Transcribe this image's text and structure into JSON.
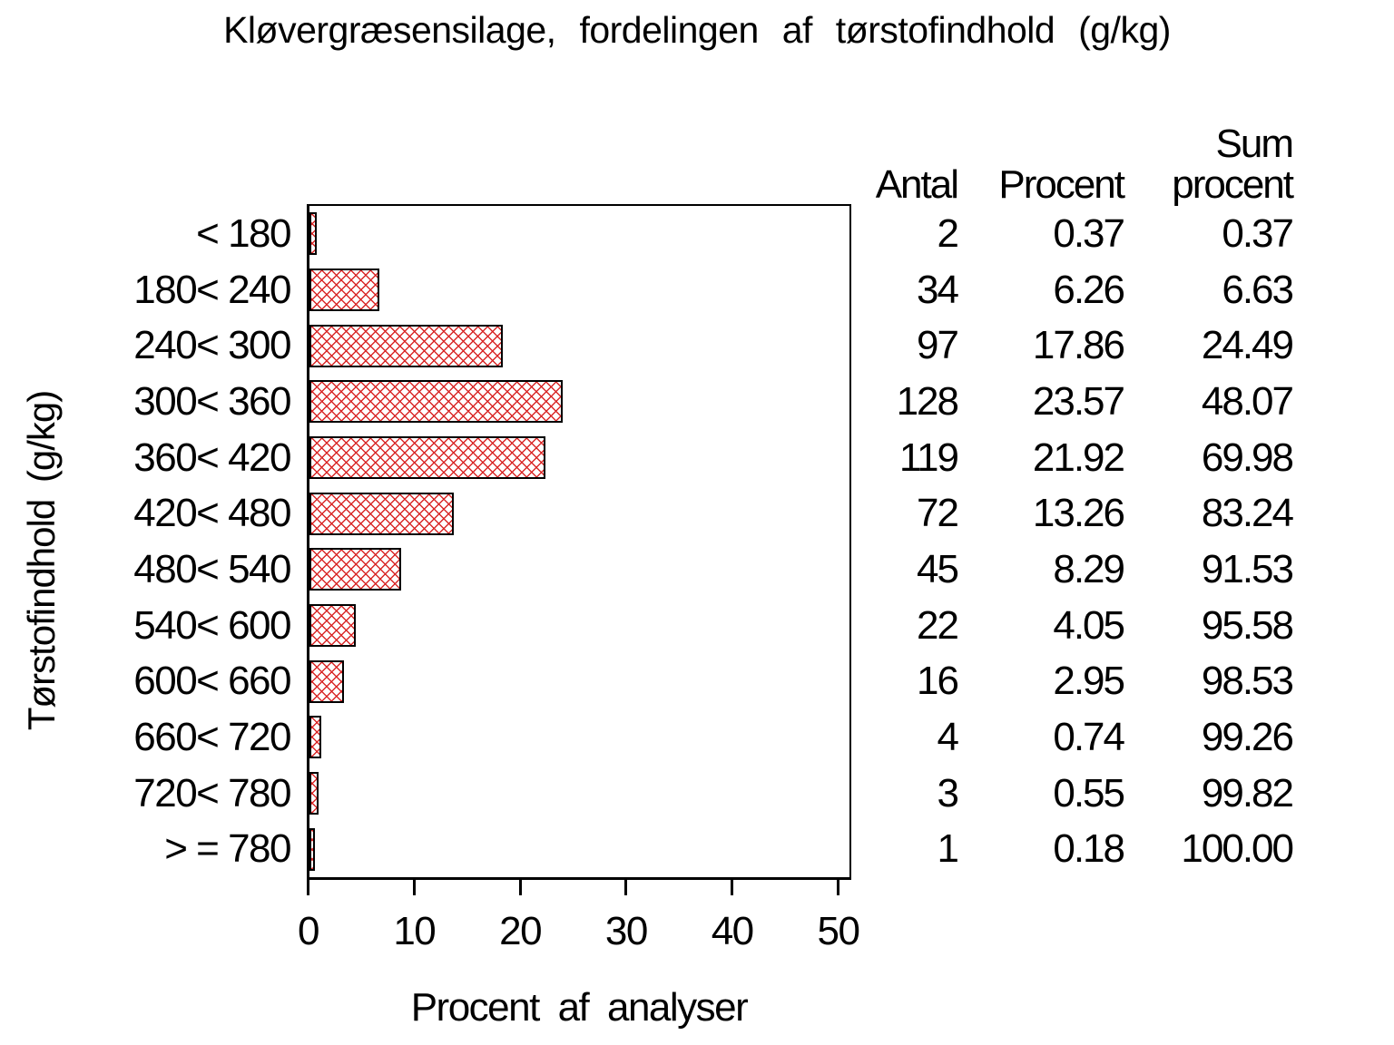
{
  "chart_data": {
    "type": "bar",
    "orientation": "horizontal",
    "title": "Kløvergræsensilage, fordelingen af tørstofindhold (g/kg)",
    "xlabel": "Procent af analyser",
    "ylabel": "Tørstofindhold (g/kg)",
    "xlim": [
      0,
      50
    ],
    "xticks": [
      "0",
      "10",
      "20",
      "30",
      "40",
      "50"
    ],
    "grid": false,
    "legend": "none",
    "categories": [
      "< 180",
      "180< 240",
      "240< 300",
      "300< 360",
      "360< 420",
      "420< 480",
      "480< 540",
      "540< 600",
      "600< 660",
      "660< 720",
      "720< 780",
      "> = 780"
    ],
    "values": [
      0.37,
      6.26,
      17.86,
      23.57,
      21.92,
      13.26,
      8.29,
      4.05,
      2.95,
      0.74,
      0.55,
      0.18
    ],
    "counts": [
      2,
      34,
      97,
      128,
      119,
      72,
      45,
      22,
      16,
      4,
      3,
      1
    ],
    "cumulative_percent": [
      0.37,
      6.63,
      24.49,
      48.07,
      69.98,
      83.24,
      91.53,
      95.58,
      98.53,
      99.26,
      99.82,
      100.0
    ],
    "bar_style": {
      "fill_pattern": "crosshatch",
      "pattern_color": "#d92828",
      "border_color": "#000000",
      "background": "#ffffff"
    },
    "table": {
      "headers": {
        "antal": "Antal",
        "procent": "Procent",
        "sum_top": "Sum",
        "sum_bottom": "procent"
      },
      "rows": [
        {
          "antal": "2",
          "procent": "0.37",
          "sum": "0.37"
        },
        {
          "antal": "34",
          "procent": "6.26",
          "sum": "6.63"
        },
        {
          "antal": "97",
          "procent": "17.86",
          "sum": "24.49"
        },
        {
          "antal": "128",
          "procent": "23.57",
          "sum": "48.07"
        },
        {
          "antal": "119",
          "procent": "21.92",
          "sum": "69.98"
        },
        {
          "antal": "72",
          "procent": "13.26",
          "sum": "83.24"
        },
        {
          "antal": "45",
          "procent": "8.29",
          "sum": "91.53"
        },
        {
          "antal": "22",
          "procent": "4.05",
          "sum": "95.58"
        },
        {
          "antal": "16",
          "procent": "2.95",
          "sum": "98.53"
        },
        {
          "antal": "4",
          "procent": "0.74",
          "sum": "99.26"
        },
        {
          "antal": "3",
          "procent": "0.55",
          "sum": "99.82"
        },
        {
          "antal": "1",
          "procent": "0.18",
          "sum": "100.00"
        }
      ]
    }
  }
}
